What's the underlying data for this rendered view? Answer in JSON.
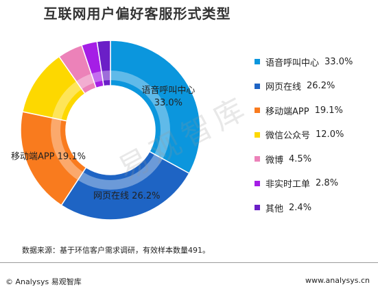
{
  "title": "互联网用户偏好客服形式类型",
  "chart_data": {
    "type": "pie",
    "title": "互联网用户偏好客服形式类型",
    "categories": [
      "语音呼叫中心",
      "网页在线",
      "移动端APP",
      "微信公众号",
      "微博",
      "非实时工单",
      "其他"
    ],
    "values": [
      33.0,
      26.2,
      19.1,
      12.0,
      4.5,
      2.8,
      2.4
    ],
    "value_labels": [
      "33.0%",
      "26.2%",
      "19.1%",
      "12.0%",
      "4.5%",
      "2.8%",
      "2.4%"
    ],
    "colors": [
      "#0b96dd",
      "#1e64c4",
      "#f97b1e",
      "#fdd800",
      "#ec82b9",
      "#a51ee6",
      "#6b1fc7"
    ],
    "legend_position": "right",
    "donut": true
  },
  "watermark": "易观智库",
  "source_text": "数据来源：基于环信客户需求调研，有效样本数量491。",
  "footer": {
    "brand": "© Analysys 易观智库",
    "url": "www.analysys.cn"
  }
}
